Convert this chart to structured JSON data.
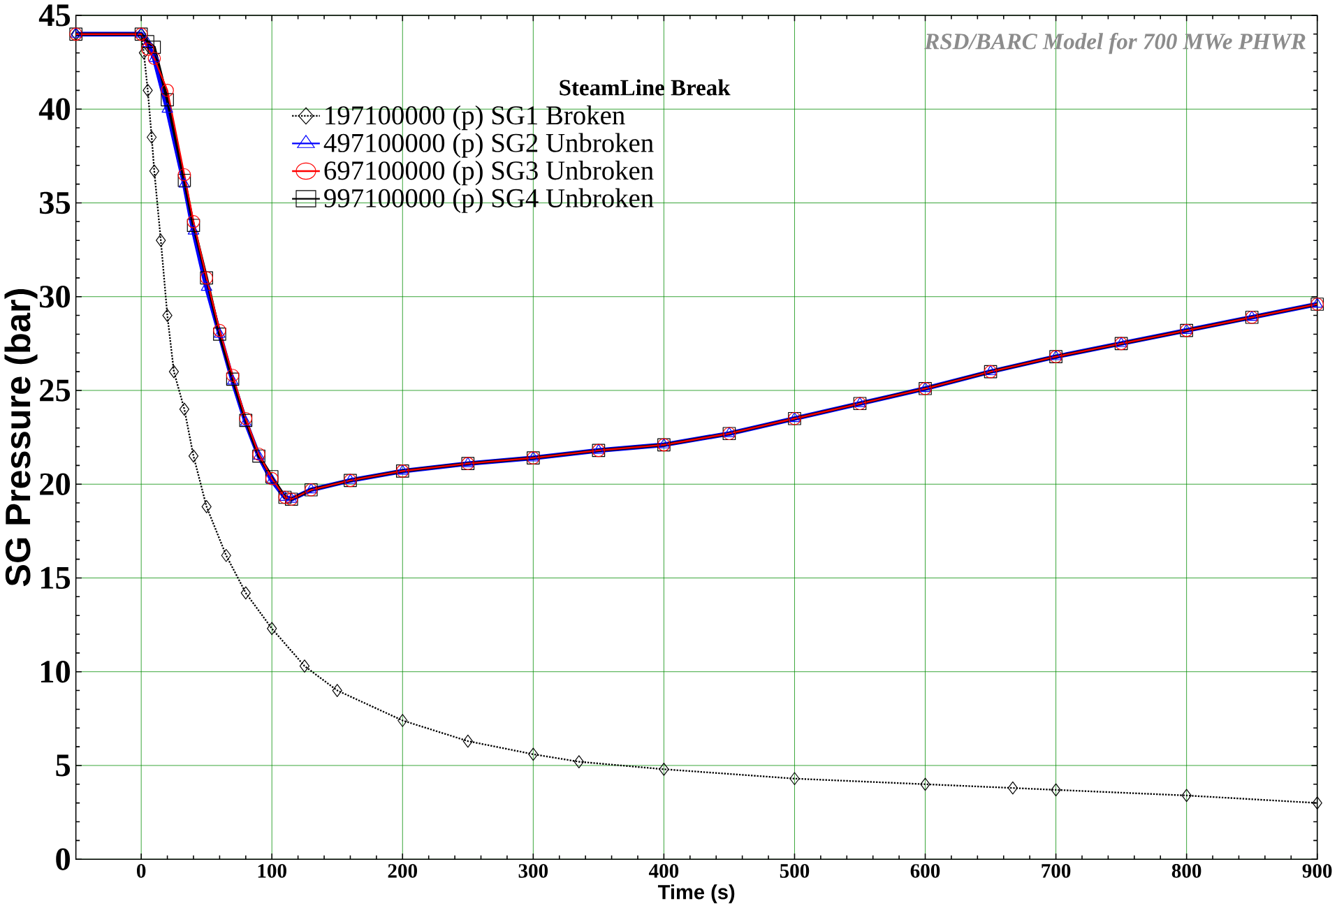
{
  "chart_data": {
    "type": "line",
    "title": "RSD/BARC Model for 700 MWe PHWR",
    "subtitle": "SteamLine Break",
    "xlabel": "Time (s)",
    "ylabel": "SG Pressure (bar)",
    "xlim": [
      -50,
      900
    ],
    "xticks": [
      0,
      100,
      200,
      300,
      400,
      500,
      600,
      700,
      800,
      900
    ],
    "ylim": [
      0,
      45
    ],
    "yticks": [
      0,
      5,
      10,
      15,
      20,
      25,
      30,
      35,
      40,
      45
    ],
    "grid": true,
    "legend": "top",
    "series": [
      {
        "name": "197100000 (p) SG1 Broken",
        "color": "#000000",
        "marker": "diamond",
        "line_style": "dotted",
        "x": [
          -50,
          0,
          2,
          5,
          8,
          10,
          15,
          20,
          25,
          33,
          40,
          50,
          65,
          80,
          100,
          125,
          150,
          200,
          250,
          300,
          335,
          400,
          500,
          600,
          667,
          700,
          800,
          900
        ],
        "values": [
          44,
          44,
          43,
          41,
          38.5,
          36.7,
          33,
          29,
          26,
          24,
          21.5,
          18.8,
          16.2,
          14.2,
          12.3,
          10.3,
          9,
          7.4,
          6.3,
          5.6,
          5.2,
          4.8,
          4.3,
          4.0,
          3.8,
          3.7,
          3.4,
          3.0
        ]
      },
      {
        "name": "497100000 (p) SG2 Unbroken",
        "color": "#0000ff",
        "marker": "triangle",
        "line_style": "solid",
        "x": [
          -50,
          0,
          5,
          10,
          20,
          33,
          40,
          50,
          60,
          70,
          80,
          90,
          100,
          110,
          115,
          130,
          160,
          200,
          250,
          300,
          350,
          400,
          450,
          500,
          550,
          600,
          650,
          700,
          750,
          800,
          850,
          900
        ],
        "values": [
          44,
          44,
          43.5,
          42.7,
          40,
          36,
          33.5,
          30.5,
          28,
          25.5,
          23.3,
          21.5,
          20.2,
          19.3,
          19.2,
          19.7,
          20.2,
          20.7,
          21.1,
          21.4,
          21.8,
          22.1,
          22.7,
          23.5,
          24.3,
          25.1,
          26.0,
          26.8,
          27.5,
          28.2,
          28.9,
          29.6
        ]
      },
      {
        "name": "697100000 (p) SG3 Unbroken",
        "color": "#ff0000",
        "marker": "circle",
        "line_style": "solid",
        "x": [
          -50,
          0,
          5,
          10,
          20,
          33,
          40,
          50,
          60,
          70,
          80,
          90,
          100,
          110,
          115,
          130,
          160,
          200,
          250,
          300,
          350,
          400,
          450,
          500,
          550,
          600,
          650,
          700,
          750,
          800,
          850,
          900
        ],
        "values": [
          44,
          44,
          43.2,
          42.7,
          41,
          36.5,
          34,
          31,
          28.2,
          25.8,
          23.5,
          21.6,
          20.3,
          19.3,
          19.2,
          19.7,
          20.2,
          20.7,
          21.1,
          21.4,
          21.8,
          22.1,
          22.7,
          23.5,
          24.3,
          25.1,
          26.0,
          26.8,
          27.5,
          28.2,
          28.9,
          29.6
        ]
      },
      {
        "name": "997100000 (p) SG4 Unbroken",
        "color": "#000000",
        "marker": "square",
        "line_style": "solid",
        "x": [
          -50,
          0,
          5,
          10,
          20,
          33,
          40,
          50,
          60,
          70,
          80,
          90,
          100,
          110,
          115,
          130,
          160,
          200,
          250,
          300,
          350,
          400,
          450,
          500,
          550,
          600,
          650,
          700,
          750,
          800,
          850,
          900
        ],
        "values": [
          44,
          44,
          43.6,
          43.3,
          40.5,
          36.2,
          33.8,
          31,
          28,
          25.6,
          23.4,
          21.5,
          20.4,
          19.3,
          19.2,
          19.7,
          20.2,
          20.7,
          21.1,
          21.4,
          21.8,
          22.1,
          22.7,
          23.5,
          24.3,
          25.1,
          26.0,
          26.8,
          27.5,
          28.2,
          28.9,
          29.6
        ]
      }
    ]
  }
}
